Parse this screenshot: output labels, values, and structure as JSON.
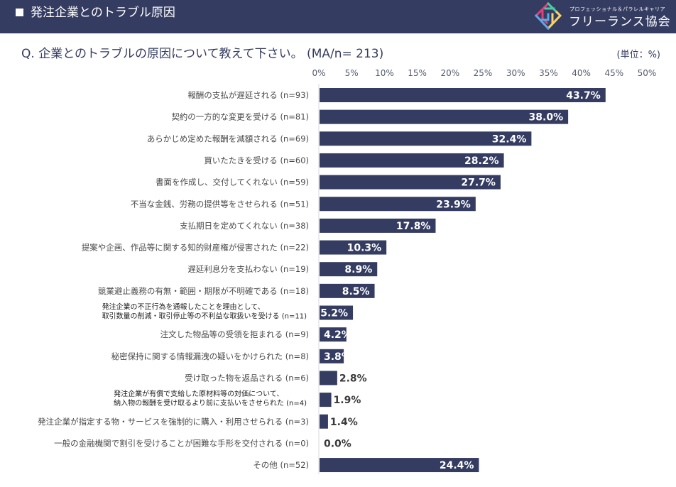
{
  "header": {
    "title": "発注企業とのトラブル原因",
    "brand_sub": "プロフェッショナル＆パラレルキャリア",
    "brand_main": "フリーランス協会"
  },
  "question": "Q.  企業とのトラブルの原因について教えて下さい。 (MA/n= 213)",
  "unit": "(単位：%)",
  "colors": {
    "header_bg": "#353c61",
    "bar": "#353c61",
    "text": "#353c61"
  },
  "chart_data": {
    "type": "bar",
    "orientation": "horizontal",
    "title": "Q.  企業とのトラブルの原因について教えて下さい。 (MA/n= 213)",
    "xlabel": "",
    "ylabel": "",
    "unit": "%",
    "xlim": [
      0,
      50
    ],
    "x_ticks": [
      "0%",
      "5%",
      "10%",
      "15%",
      "20%",
      "25%",
      "30%",
      "35%",
      "40%",
      "45%",
      "50%"
    ],
    "x_tick_values": [
      0,
      5,
      10,
      15,
      20,
      25,
      30,
      35,
      40,
      45,
      50
    ],
    "grid": false,
    "legend": "none",
    "categories": [
      [
        "報酬の支払が遅延される (n=93)"
      ],
      [
        "契約の一方的な変更を受ける (n=81)"
      ],
      [
        "あらかじめ定めた報酬を減額される (n=69)"
      ],
      [
        "買いたたきを受ける (n=60)"
      ],
      [
        "書面を作成し、交付してくれない (n=59)"
      ],
      [
        "不当な金銭、労務の提供等をさせられる (n=51)"
      ],
      [
        "支払期日を定めてくれない (n=38)"
      ],
      [
        "提案や企画、作品等に関する知的財産権が侵害された (n=22)"
      ],
      [
        "遅延利息分を支払わない (n=19)"
      ],
      [
        "競業避止義務の有無・範囲・期限が不明確である (n=18)"
      ],
      [
        "発注企業の不正行為を通報したことを理由として、",
        "取引数量の削減・取引停止等の不利益な取扱いを受ける (n=11)"
      ],
      [
        "注文した物品等の受領を拒まれる (n=9)"
      ],
      [
        "秘密保持に関する情報漏洩の疑いをかけられた (n=8)"
      ],
      [
        "受け取った物を返品される (n=6)"
      ],
      [
        "発注企業が有償で支給した原材料等の対価について、",
        "納入物の報酬を受け取るより前に支払いをさせられた (n=4)"
      ],
      [
        "発注企業が指定する物・サービスを強制的に購入・利用させられる (n=3)"
      ],
      [
        "一般の金融機関で割引を受けることが困難な手形を交付される (n=0)"
      ],
      [
        "その他 (n=52)"
      ]
    ],
    "values": [
      43.7,
      38.0,
      32.4,
      28.2,
      27.7,
      23.9,
      17.8,
      10.3,
      8.9,
      8.5,
      5.2,
      4.2,
      3.8,
      2.8,
      1.9,
      1.4,
      0.0,
      24.4
    ],
    "value_labels": [
      "43.7%",
      "38.0%",
      "32.4%",
      "28.2%",
      "27.7%",
      "23.9%",
      "17.8%",
      "10.3%",
      "8.9%",
      "8.5%",
      "5.2%",
      "4.2%",
      "3.8%",
      "2.8%",
      "1.9%",
      "1.4%",
      "0.0%",
      "24.4%"
    ]
  }
}
